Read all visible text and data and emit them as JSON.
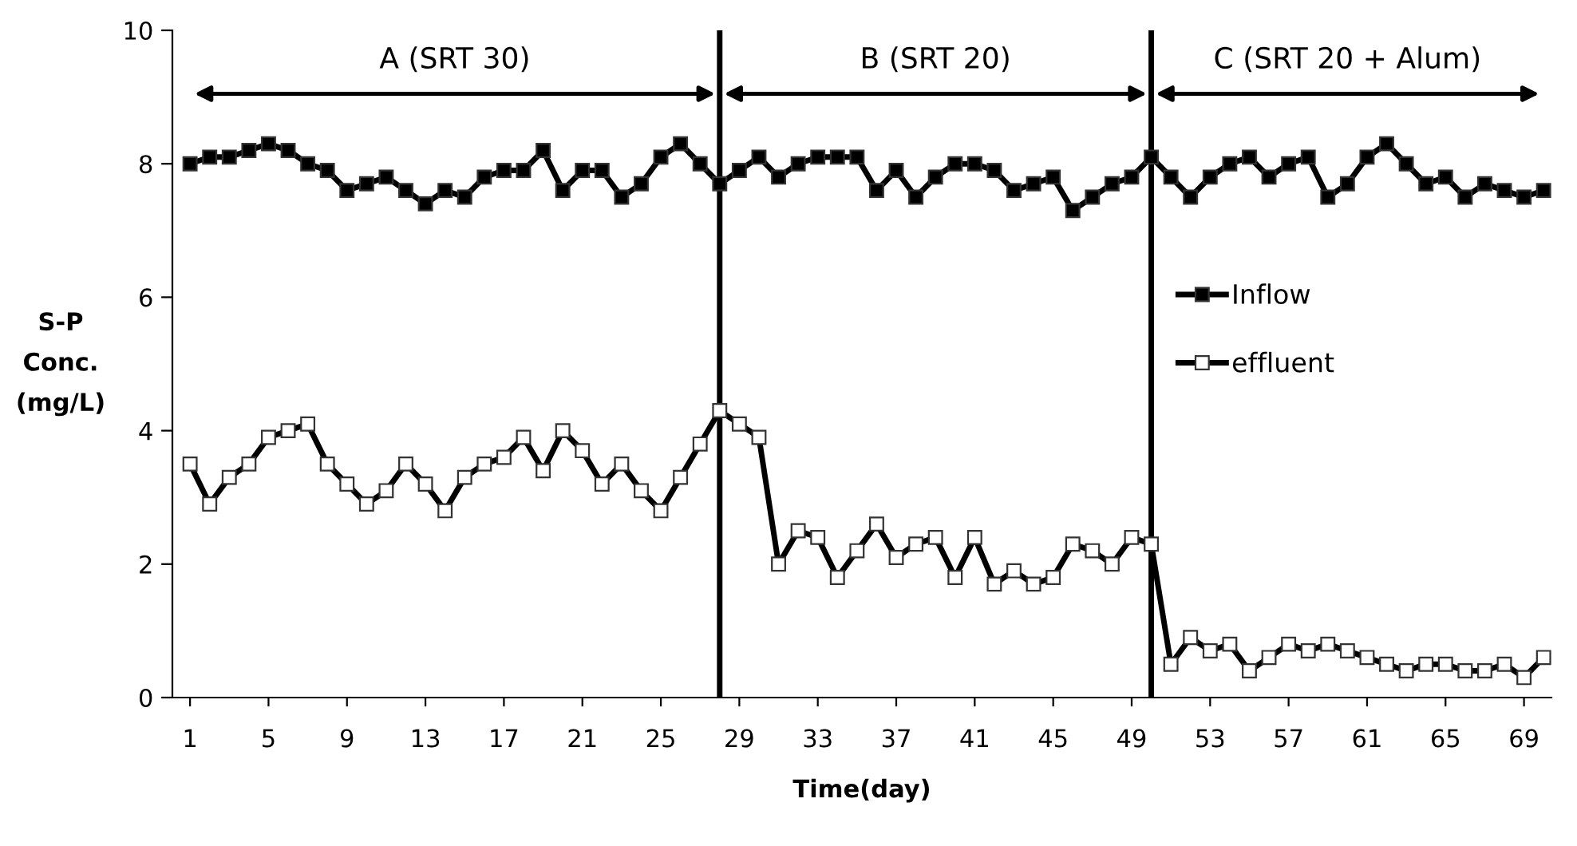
{
  "chart_data": {
    "type": "line",
    "xlabel": "Time(day)",
    "ylabel": "S-P\nConc.\n(mg/L)",
    "x": [
      1,
      2,
      3,
      4,
      5,
      6,
      7,
      8,
      9,
      10,
      11,
      12,
      13,
      14,
      15,
      16,
      17,
      18,
      19,
      20,
      21,
      22,
      23,
      24,
      25,
      26,
      27,
      28,
      29,
      30,
      31,
      32,
      33,
      34,
      35,
      36,
      37,
      38,
      39,
      40,
      41,
      42,
      43,
      44,
      45,
      46,
      47,
      48,
      49,
      50,
      51,
      52,
      53,
      54,
      55,
      56,
      57,
      58,
      59,
      60,
      61,
      62,
      63,
      64,
      65,
      66,
      67,
      68,
      69,
      70
    ],
    "xlim": [
      0.1,
      70.4
    ],
    "xticks": [
      1,
      5,
      9,
      13,
      17,
      21,
      25,
      29,
      33,
      37,
      41,
      45,
      49,
      53,
      57,
      61,
      65,
      69
    ],
    "ylim": [
      0,
      10
    ],
    "yticks": [
      0,
      2,
      4,
      6,
      8,
      10
    ],
    "grid": false,
    "legend": "right",
    "marker": "square",
    "line_style": "solid",
    "series": [
      {
        "name": "Inflow",
        "color": "#000000",
        "values": [
          8.0,
          8.1,
          8.1,
          8.2,
          8.3,
          8.2,
          8.0,
          7.9,
          7.6,
          7.7,
          7.8,
          7.6,
          7.4,
          7.6,
          7.5,
          7.8,
          7.9,
          7.9,
          8.2,
          7.6,
          7.9,
          7.9,
          7.5,
          7.7,
          8.1,
          8.3,
          8.0,
          7.7,
          7.9,
          8.1,
          7.8,
          8.0,
          8.1,
          8.1,
          8.1,
          7.6,
          7.9,
          7.5,
          7.8,
          8.0,
          8.0,
          7.9,
          7.6,
          7.7,
          7.8,
          7.3,
          7.5,
          7.7,
          7.8,
          8.1,
          7.8,
          7.5,
          7.8,
          8.0,
          8.1,
          7.8,
          8.0,
          8.1,
          7.5,
          7.7,
          8.1,
          8.3,
          8.0,
          7.7,
          7.8,
          7.5,
          7.7,
          7.6,
          7.5,
          7.6
        ]
      },
      {
        "name": "effluent",
        "color": "#000000",
        "values": [
          3.5,
          2.9,
          3.3,
          3.5,
          3.9,
          4.0,
          4.1,
          3.5,
          3.2,
          2.9,
          3.1,
          3.5,
          3.2,
          2.8,
          3.3,
          3.5,
          3.6,
          3.9,
          3.4,
          4.0,
          3.7,
          3.2,
          3.5,
          3.1,
          2.8,
          3.3,
          3.8,
          4.3,
          4.1,
          3.9,
          2.0,
          2.5,
          2.4,
          1.8,
          2.2,
          2.6,
          2.1,
          2.3,
          2.4,
          1.8,
          2.4,
          1.7,
          1.9,
          1.7,
          1.8,
          2.3,
          2.2,
          2.0,
          2.4,
          2.3,
          0.5,
          0.9,
          0.7,
          0.8,
          0.4,
          0.6,
          0.8,
          0.7,
          0.8,
          0.7,
          0.6,
          0.5,
          0.4,
          0.5,
          0.5,
          0.4,
          0.4,
          0.5,
          0.3,
          0.6
        ]
      }
    ],
    "ref_lines": [
      {
        "axis": "x",
        "value": 28,
        "color": "#000000"
      },
      {
        "axis": "x",
        "value": 50,
        "color": "#000000"
      }
    ],
    "annotations": [
      "A (SRT 30)",
      "B (SRT 20)",
      "C (SRT 20 + Alum)"
    ]
  }
}
